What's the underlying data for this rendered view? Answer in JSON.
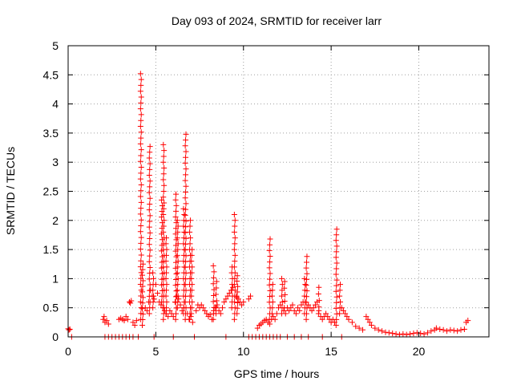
{
  "chart_data": {
    "type": "scatter",
    "title": "Day 093 of 2024, SRMTID for receiver larr",
    "xlabel": "GPS time / hours",
    "ylabel": "SRMTID / TECUs",
    "xlim": [
      0,
      24
    ],
    "ylim": [
      0,
      5
    ],
    "xticks": [
      0,
      5,
      10,
      15,
      20
    ],
    "yticks": [
      0,
      0.5,
      1,
      1.5,
      2,
      2.5,
      3,
      3.5,
      4,
      4.5,
      5
    ],
    "xtick_labels": [
      "0",
      "5",
      "10",
      "15",
      "20"
    ],
    "ytick_labels": [
      "0",
      "0.5",
      "1",
      "1.5",
      "2",
      "2.5",
      "3",
      "3.5",
      "4",
      "4.5",
      "5"
    ],
    "grid": true,
    "marker": "+",
    "color": "#ff0000",
    "series": [
      {
        "name": "SRMTID",
        "baseline_points": [
          [
            0.0,
            0.14
          ],
          [
            0.05,
            0.12
          ],
          [
            0.1,
            0.13
          ],
          [
            2.0,
            0.3
          ],
          [
            2.05,
            0.35
          ],
          [
            2.1,
            0.25
          ],
          [
            2.2,
            0.28
          ],
          [
            2.3,
            0.22
          ],
          [
            2.9,
            0.3
          ],
          [
            3.0,
            0.32
          ],
          [
            3.1,
            0.3
          ],
          [
            3.2,
            0.28
          ],
          [
            3.3,
            0.35
          ],
          [
            3.4,
            0.3
          ],
          [
            3.5,
            0.6
          ],
          [
            3.55,
            0.58
          ],
          [
            3.6,
            0.62
          ],
          [
            3.7,
            0.25
          ],
          [
            3.8,
            0.2
          ],
          [
            3.9,
            0.28
          ],
          [
            4.4,
            0.5
          ],
          [
            4.5,
            0.45
          ],
          [
            4.6,
            0.6
          ],
          [
            4.7,
            0.8
          ],
          [
            4.8,
            0.7
          ],
          [
            4.9,
            0.65
          ],
          [
            5.0,
            0.9
          ],
          [
            5.1,
            0.75
          ],
          [
            5.2,
            0.6
          ],
          [
            5.3,
            0.55
          ],
          [
            5.4,
            0.5
          ],
          [
            5.5,
            0.45
          ],
          [
            5.6,
            0.4
          ],
          [
            5.7,
            0.35
          ],
          [
            5.8,
            0.45
          ],
          [
            5.9,
            0.4
          ],
          [
            6.0,
            0.35
          ],
          [
            6.1,
            0.6
          ],
          [
            6.2,
            0.7
          ],
          [
            6.3,
            0.65
          ],
          [
            6.4,
            0.55
          ],
          [
            6.5,
            0.45
          ],
          [
            6.6,
            0.5
          ],
          [
            6.8,
            0.4
          ],
          [
            6.9,
            0.3
          ],
          [
            7.0,
            0.35
          ],
          [
            7.1,
            0.25
          ],
          [
            7.3,
            0.45
          ],
          [
            7.4,
            0.55
          ],
          [
            7.5,
            0.5
          ],
          [
            7.6,
            0.55
          ],
          [
            7.7,
            0.5
          ],
          [
            7.8,
            0.45
          ],
          [
            7.9,
            0.4
          ],
          [
            8.0,
            0.35
          ],
          [
            8.1,
            0.38
          ],
          [
            8.2,
            0.3
          ],
          [
            8.3,
            0.45
          ],
          [
            8.4,
            0.5
          ],
          [
            8.5,
            0.55
          ],
          [
            8.6,
            0.45
          ],
          [
            8.7,
            0.4
          ],
          [
            8.8,
            0.5
          ],
          [
            8.9,
            0.6
          ],
          [
            9.0,
            0.65
          ],
          [
            9.1,
            0.7
          ],
          [
            9.2,
            0.75
          ],
          [
            9.3,
            0.8
          ],
          [
            9.4,
            0.85
          ],
          [
            9.6,
            0.7
          ],
          [
            9.7,
            0.65
          ],
          [
            9.8,
            0.6
          ],
          [
            9.9,
            0.55
          ],
          [
            10.0,
            0.6
          ],
          [
            10.3,
            0.65
          ],
          [
            10.4,
            0.7
          ],
          [
            10.8,
            0.15
          ],
          [
            10.9,
            0.2
          ],
          [
            11.0,
            0.22
          ],
          [
            11.1,
            0.25
          ],
          [
            11.2,
            0.28
          ],
          [
            11.3,
            0.3
          ],
          [
            11.4,
            0.25
          ],
          [
            11.5,
            0.22
          ],
          [
            11.6,
            0.3
          ],
          [
            11.7,
            0.35
          ],
          [
            11.8,
            0.3
          ],
          [
            11.9,
            0.4
          ],
          [
            12.0,
            0.5
          ],
          [
            12.1,
            0.55
          ],
          [
            12.3,
            0.45
          ],
          [
            12.4,
            0.4
          ],
          [
            12.5,
            0.5
          ],
          [
            12.6,
            0.45
          ],
          [
            12.7,
            0.5
          ],
          [
            12.8,
            0.55
          ],
          [
            12.9,
            0.45
          ],
          [
            13.0,
            0.4
          ],
          [
            13.1,
            0.5
          ],
          [
            13.2,
            0.45
          ],
          [
            13.3,
            0.55
          ],
          [
            13.4,
            0.6
          ],
          [
            13.7,
            0.55
          ],
          [
            13.8,
            0.5
          ],
          [
            13.9,
            0.45
          ],
          [
            14.0,
            0.5
          ],
          [
            14.1,
            0.55
          ],
          [
            14.2,
            0.6
          ],
          [
            14.3,
            0.45
          ],
          [
            14.4,
            0.35
          ],
          [
            14.5,
            0.3
          ],
          [
            14.6,
            0.35
          ],
          [
            14.7,
            0.4
          ],
          [
            14.8,
            0.35
          ],
          [
            14.9,
            0.3
          ],
          [
            15.0,
            0.25
          ],
          [
            15.1,
            0.3
          ],
          [
            15.2,
            0.25
          ],
          [
            15.6,
            0.5
          ],
          [
            15.7,
            0.45
          ],
          [
            15.8,
            0.4
          ],
          [
            15.9,
            0.35
          ],
          [
            16.0,
            0.3
          ],
          [
            16.2,
            0.25
          ],
          [
            16.4,
            0.18
          ],
          [
            16.6,
            0.15
          ],
          [
            16.8,
            0.12
          ],
          [
            17.0,
            0.35
          ],
          [
            17.1,
            0.3
          ],
          [
            17.2,
            0.25
          ],
          [
            17.3,
            0.2
          ],
          [
            17.5,
            0.15
          ],
          [
            17.7,
            0.12
          ],
          [
            17.9,
            0.1
          ],
          [
            18.1,
            0.08
          ],
          [
            18.3,
            0.07
          ],
          [
            18.5,
            0.06
          ],
          [
            18.7,
            0.05
          ],
          [
            18.9,
            0.04
          ],
          [
            19.1,
            0.05
          ],
          [
            19.3,
            0.04
          ],
          [
            19.5,
            0.05
          ],
          [
            19.7,
            0.06
          ],
          [
            19.9,
            0.07
          ],
          [
            20.1,
            0.06
          ],
          [
            20.3,
            0.05
          ],
          [
            20.5,
            0.07
          ],
          [
            20.7,
            0.1
          ],
          [
            20.9,
            0.12
          ],
          [
            21.0,
            0.15
          ],
          [
            21.2,
            0.13
          ],
          [
            21.4,
            0.12
          ],
          [
            21.6,
            0.1
          ],
          [
            21.8,
            0.12
          ],
          [
            22.0,
            0.11
          ],
          [
            22.2,
            0.1
          ],
          [
            22.4,
            0.12
          ],
          [
            22.6,
            0.13
          ],
          [
            22.7,
            0.25
          ],
          [
            22.8,
            0.28
          ]
        ],
        "zero_points": [
          0.2,
          2.1,
          2.3,
          2.5,
          2.7,
          2.9,
          3.1,
          3.3,
          3.5,
          3.7,
          4.0,
          4.9,
          6.0,
          7.2,
          9.0,
          10.3,
          10.5,
          10.7,
          10.9,
          11.1,
          11.3,
          11.5,
          11.7,
          11.9,
          12.1,
          12.5,
          12.9,
          13.3,
          13.7,
          14.5,
          15.6
        ],
        "spikes": [
          {
            "x": 4.15,
            "from": 0.3,
            "to": 4.52
          },
          {
            "x": 4.25,
            "from": 0.2,
            "to": 1.25
          },
          {
            "x": 4.65,
            "from": 0.4,
            "to": 3.27
          },
          {
            "x": 4.85,
            "from": 0.5,
            "to": 1.1
          },
          {
            "x": 5.45,
            "from": 0.3,
            "to": 3.3
          },
          {
            "x": 5.35,
            "from": 0.6,
            "to": 2.35
          },
          {
            "x": 5.6,
            "from": 0.4,
            "to": 1.7
          },
          {
            "x": 6.15,
            "from": 0.3,
            "to": 2.45
          },
          {
            "x": 6.25,
            "from": 0.5,
            "to": 2.0
          },
          {
            "x": 6.7,
            "from": 0.3,
            "to": 3.48
          },
          {
            "x": 6.6,
            "from": 0.4,
            "to": 2.2
          },
          {
            "x": 6.95,
            "from": 0.3,
            "to": 2.0
          },
          {
            "x": 7.05,
            "from": 0.4,
            "to": 1.5
          },
          {
            "x": 8.3,
            "from": 0.3,
            "to": 1.22
          },
          {
            "x": 8.45,
            "from": 0.4,
            "to": 0.95
          },
          {
            "x": 9.5,
            "from": 0.3,
            "to": 2.1
          },
          {
            "x": 9.35,
            "from": 0.5,
            "to": 1.2
          },
          {
            "x": 9.65,
            "from": 0.4,
            "to": 1.05
          },
          {
            "x": 11.5,
            "from": 0.3,
            "to": 1.68
          },
          {
            "x": 11.65,
            "from": 0.4,
            "to": 0.9
          },
          {
            "x": 12.2,
            "from": 0.4,
            "to": 1.0
          },
          {
            "x": 12.35,
            "from": 0.5,
            "to": 0.95
          },
          {
            "x": 13.6,
            "from": 0.3,
            "to": 1.38
          },
          {
            "x": 13.5,
            "from": 0.4,
            "to": 1.0
          },
          {
            "x": 14.3,
            "from": 0.4,
            "to": 0.85
          },
          {
            "x": 15.3,
            "from": 0.2,
            "to": 1.85
          },
          {
            "x": 15.5,
            "from": 0.4,
            "to": 0.9
          }
        ]
      }
    ]
  }
}
